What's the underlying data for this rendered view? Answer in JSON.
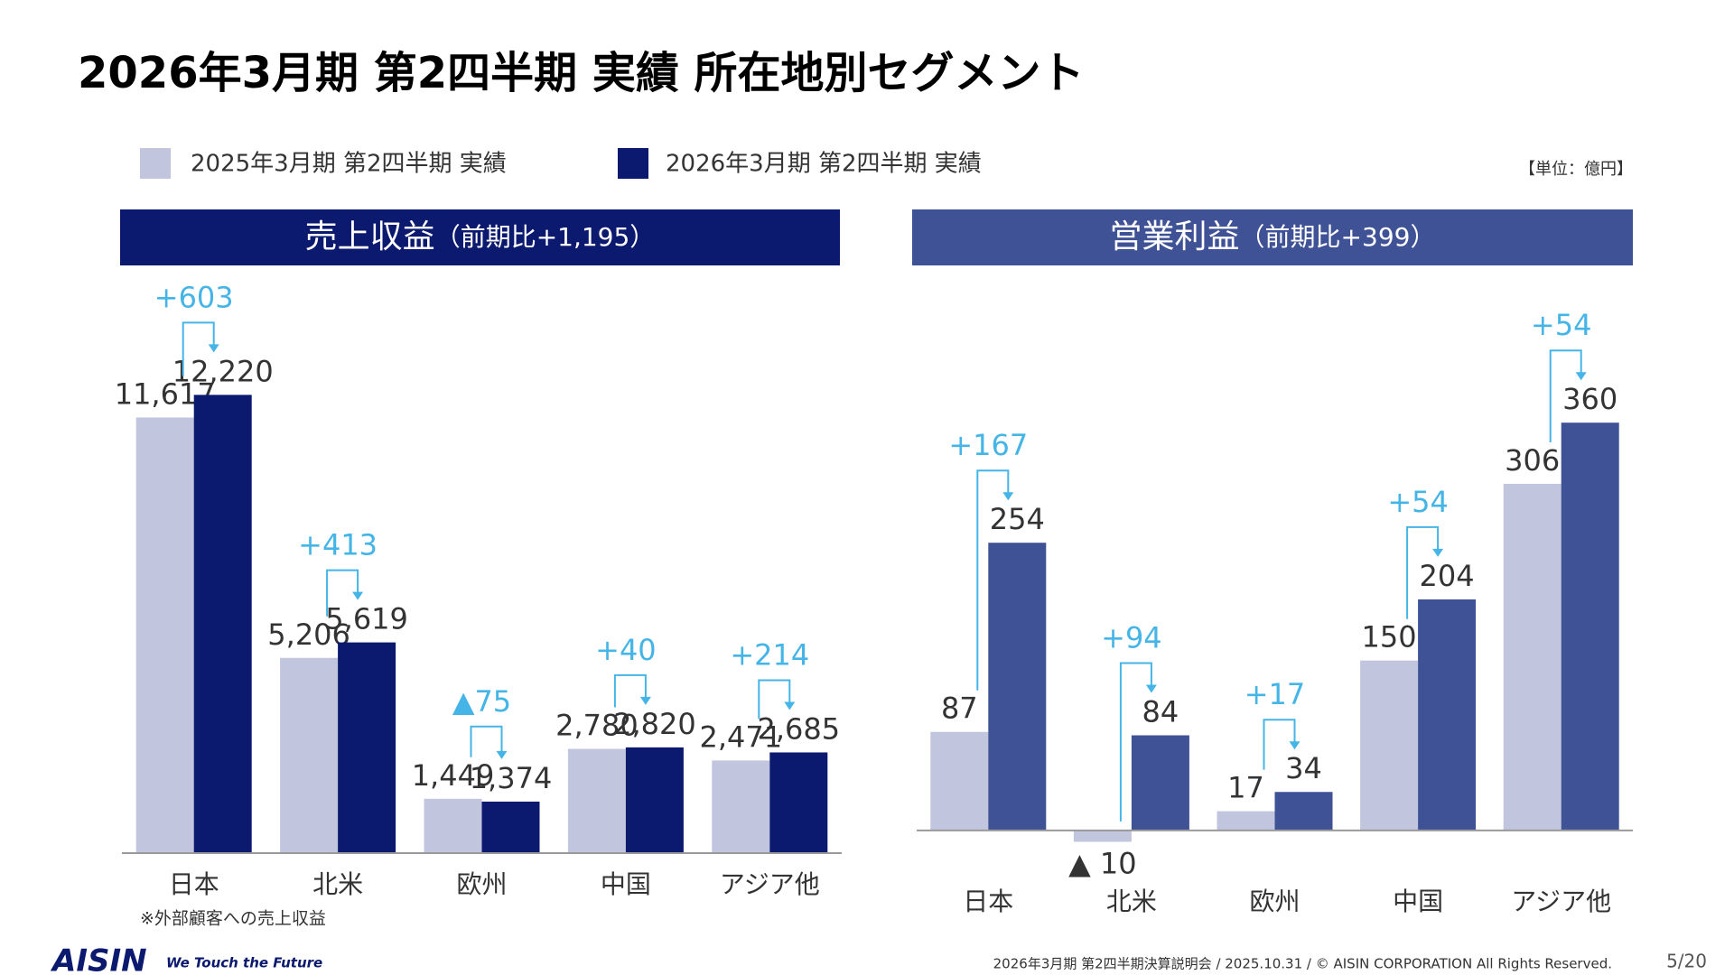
{
  "header": {
    "title": "2026年3月期 第2四半期 実績 所在地別セグメント"
  },
  "unit": "【単位：億円】",
  "chart_data": [
    {
      "type": "bar",
      "title": "売上収益",
      "subtitle": "（前期比+1,195）",
      "categories": [
        "日本",
        "北米",
        "欧州",
        "中国",
        "アジア他"
      ],
      "series": [
        {
          "name": "2025年3月期 第2四半期 実績",
          "color": "#c1c5dd",
          "values": [
            11617,
            5206,
            1449,
            2780,
            2471
          ],
          "value_labels": [
            "11,617",
            "5,206",
            "1,449",
            "2,780",
            "2,471"
          ]
        },
        {
          "name": "2026年3月期 第2四半期 実績",
          "color": "#0b1a6e",
          "values": [
            12220,
            5619,
            1374,
            2820,
            2685
          ],
          "value_labels": [
            "12,220",
            "5,619",
            "1,374",
            "2,820",
            "2,685"
          ]
        }
      ],
      "annotations": [
        "+603",
        "+413",
        "▲75",
        "+40",
        "+214"
      ],
      "ylim": [
        0,
        13000
      ],
      "footnote": "※外部顧客への売上収益"
    },
    {
      "type": "bar",
      "title": "営業利益",
      "subtitle": "（前期比+399）",
      "categories": [
        "日本",
        "北米",
        "欧州",
        "中国",
        "アジア他"
      ],
      "series": [
        {
          "color": "#c1c5dd",
          "values": [
            87,
            -10,
            17,
            150,
            306
          ],
          "value_labels": [
            "87",
            "▲ 10",
            "17",
            "150",
            "306"
          ]
        },
        {
          "color": "#3f5296",
          "values": [
            254,
            84,
            34,
            204,
            360
          ]
        }
      ],
      "annotations": [
        "+167",
        "+94",
        "+17",
        "+54",
        "+54"
      ],
      "ylim": [
        -20,
        400
      ]
    }
  ],
  "footer": {
    "logo": "AISIN",
    "tagline": "We Touch the Future",
    "text": "2026年3月期 第2四半期決算説明会 / 2025.10.31 / © AISIN CORPORATION All Rights Reserved.",
    "page": "5/20"
  }
}
